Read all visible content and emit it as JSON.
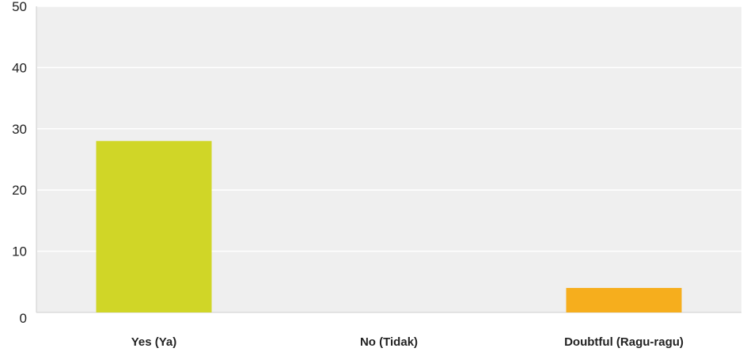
{
  "chart_data": {
    "type": "bar",
    "title": "",
    "xlabel": "",
    "ylabel": "",
    "categories": [
      "Yes (Ya)",
      "No (Tidak)",
      "Doubtful (Ragu-ragu)"
    ],
    "values": [
      28,
      0,
      4
    ],
    "colors": [
      "#d0d627",
      "#7fb03f",
      "#f6ae1d"
    ],
    "ylim": [
      0,
      50
    ],
    "yticks": [
      0,
      10,
      20,
      30,
      40,
      50
    ],
    "ytick_labels": [
      "0",
      "10",
      "20",
      "30",
      "40",
      "50"
    ],
    "grid": true,
    "legend": "none",
    "plot_background": "#efefef",
    "grid_color": "#ffffff"
  }
}
